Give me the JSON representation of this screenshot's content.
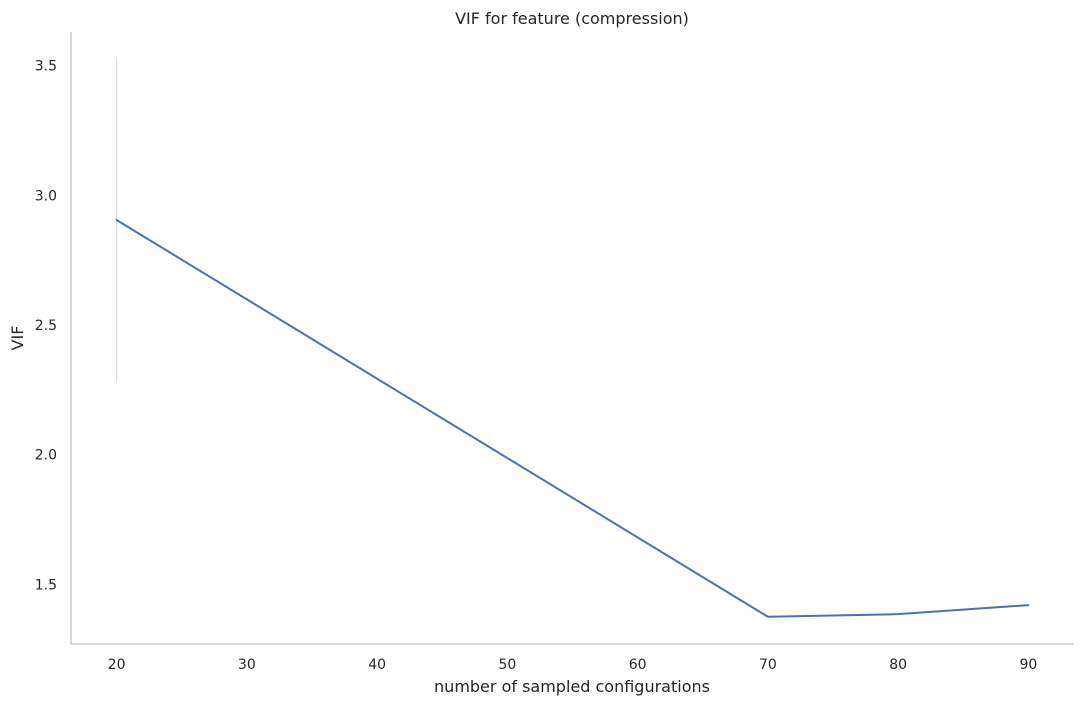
{
  "chart_data": {
    "type": "line",
    "title": "VIF for feature (compression)",
    "xlabel": "number of sampled configurations",
    "ylabel": "VIF",
    "xlim": [
      16.5,
      93.5
    ],
    "ylim": [
      1.27,
      3.63
    ],
    "xticks": [
      20,
      30,
      40,
      50,
      60,
      70,
      80,
      90
    ],
    "yticks": [
      1.5,
      2.0,
      2.5,
      3.0,
      3.5
    ],
    "ytick_labels": [
      "1.5",
      "2.0",
      "2.5",
      "3.0",
      "3.5"
    ],
    "grid": false,
    "series": [
      {
        "x": [
          20,
          70,
          80,
          90
        ],
        "values": [
          2.905,
          1.375,
          1.385,
          1.42
        ],
        "color": "#4c72b0"
      }
    ],
    "error_bars": [
      {
        "x": 20,
        "low": 2.28,
        "high": 3.525
      }
    ],
    "error_bar_color": "#dddddd",
    "axis_color": "#cccccc"
  }
}
